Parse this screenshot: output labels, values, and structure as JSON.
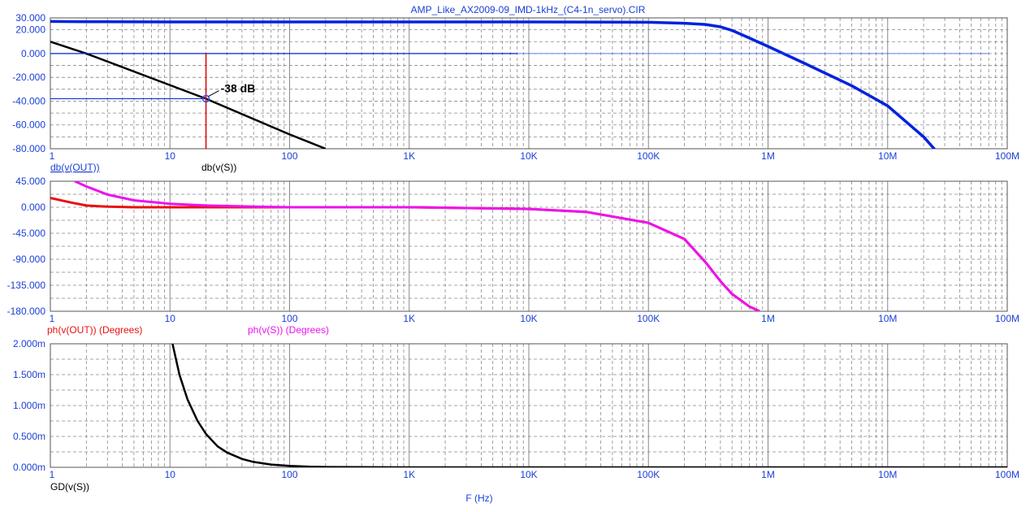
{
  "window": {
    "title": "AMP_Like_AX2009-09_IMD-1kHz_(C4-1n_servo).CIR"
  },
  "xaxis": {
    "label": "F (Hz)",
    "scale": "log",
    "range": [
      1,
      100000000
    ],
    "tick_labels": [
      "1",
      "10",
      "100",
      "1K",
      "10K",
      "100K",
      "1M",
      "10M",
      "100M"
    ]
  },
  "colors": {
    "blue": "#0022dd",
    "black": "#000000",
    "red": "#e81010",
    "magenta": "#ee11ee",
    "cursor": "#dd0000",
    "grid": "#888888"
  },
  "annotation": {
    "text": "-38 dB",
    "x": 20,
    "y": -38
  },
  "chart_data": [
    {
      "type": "line",
      "id": "magnitude",
      "ylim": [
        -80,
        30
      ],
      "y_tick_labels": [
        "30.000",
        "20.000",
        "0.000",
        "-20.000",
        "-40.000",
        "-60.000",
        "-80.000"
      ],
      "legend": [
        "db(v(OUT))",
        "db(v(S))"
      ],
      "series": [
        {
          "name": "db(v(OUT))",
          "color": "#0022dd",
          "x": [
            1,
            2,
            10,
            100,
            1000,
            10000,
            100000,
            200000,
            300000,
            400000,
            500000,
            700000,
            1000000,
            2000000,
            5000000,
            10000000,
            20000000,
            25000000
          ],
          "y": [
            27,
            26.8,
            26.6,
            26.6,
            26.6,
            26.6,
            26.3,
            25.5,
            24.5,
            22.5,
            19.5,
            13,
            6,
            -8,
            -27,
            -44,
            -70,
            -81
          ]
        },
        {
          "name": "db(v(S))",
          "color": "#000000",
          "x": [
            1,
            2,
            20,
            100,
            200
          ],
          "y": [
            10,
            0,
            -38,
            -68,
            -80
          ]
        }
      ]
    },
    {
      "type": "line",
      "id": "phase",
      "ylim": [
        -180,
        45
      ],
      "y_tick_labels": [
        "45.000",
        "0.000",
        "-45.000",
        "-90.000",
        "-135.000",
        "-180.000"
      ],
      "legend": [
        "ph(v(OUT)) (Degrees)",
        "ph(v(S)) (Degrees)"
      ],
      "series": [
        {
          "name": "ph(v(OUT)) (Degrees)",
          "color": "#e81010",
          "x": [
            1,
            1.5,
            2,
            3,
            5,
            10,
            100,
            1000,
            10000,
            30000,
            100000,
            200000,
            300000,
            400000,
            500000,
            700000,
            850000
          ],
          "y": [
            16,
            8,
            3,
            1,
            0,
            0,
            0,
            0,
            -3,
            -8,
            -27,
            -55,
            -95,
            -128,
            -150,
            -172,
            -180
          ]
        },
        {
          "name": "ph(v(S)) (Degrees)",
          "color": "#ee11ee",
          "x": [
            1.6,
            2,
            3,
            5,
            10,
            20,
            50,
            100,
            1000,
            10000,
            30000,
            100000,
            200000,
            300000,
            400000,
            500000,
            700000,
            850000
          ],
          "y": [
            45,
            36,
            22,
            12,
            6,
            3,
            1,
            0,
            0,
            -3,
            -8,
            -27,
            -55,
            -95,
            -128,
            -150,
            -172,
            -180
          ]
        }
      ]
    },
    {
      "type": "line",
      "id": "group-delay",
      "ylim": [
        0,
        0.002
      ],
      "y_tick_labels": [
        "2.000m",
        "1.500m",
        "1.000m",
        "0.500m",
        "0.000m"
      ],
      "legend": [
        "GD(v(S))"
      ],
      "series": [
        {
          "name": "GD(v(S))",
          "color": "#000000",
          "x": [
            10.5,
            12,
            14,
            17,
            20,
            25,
            30,
            40,
            50,
            70,
            100,
            150,
            200,
            1000,
            100000000
          ],
          "y": [
            0.002,
            0.0015,
            0.0011,
            0.00075,
            0.00054,
            0.00034,
            0.00024,
            0.000135,
            8.7e-05,
            4.5e-05,
            2.2e-05,
            9e-06,
            5e-06,
            0,
            0
          ]
        }
      ]
    }
  ]
}
